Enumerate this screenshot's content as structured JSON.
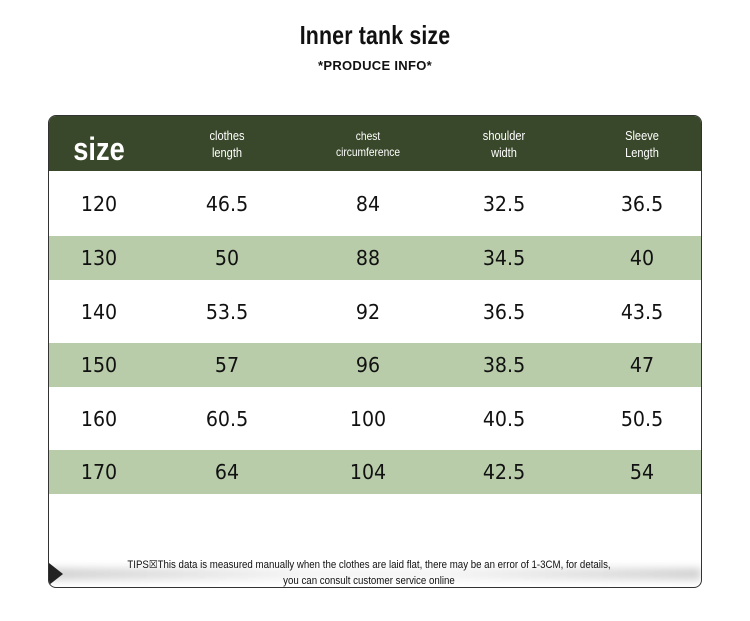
{
  "title": "Inner tank size",
  "subtitle": "*PRODUCE INFO*",
  "colors": {
    "header_bg": "#39482a",
    "stripe_bg": "#b8ccaa"
  },
  "table": {
    "headers": [
      {
        "line1": "size",
        "line2": ""
      },
      {
        "line1": "clothes",
        "line2": "length"
      },
      {
        "line1": "chest",
        "line2": "circumference"
      },
      {
        "line1": "shoulder",
        "line2": "width"
      },
      {
        "line1": "Sleeve",
        "line2": "Length"
      }
    ],
    "rows": [
      [
        "120",
        "46.5",
        "84",
        "32.5",
        "36.5"
      ],
      [
        "130",
        "50",
        "88",
        "34.5",
        "40"
      ],
      [
        "140",
        "53.5",
        "92",
        "36.5",
        "43.5"
      ],
      [
        "150",
        "57",
        "96",
        "38.5",
        "47"
      ],
      [
        "160",
        "60.5",
        "100",
        "40.5",
        "50.5"
      ],
      [
        "170",
        "64",
        "104",
        "42.5",
        "54"
      ]
    ]
  },
  "tips": {
    "label": "TIPS",
    "text": "This data is measured manually when the clothes are laid flat, there may be an error of 1-3CM, for details, you can consult customer service online"
  }
}
